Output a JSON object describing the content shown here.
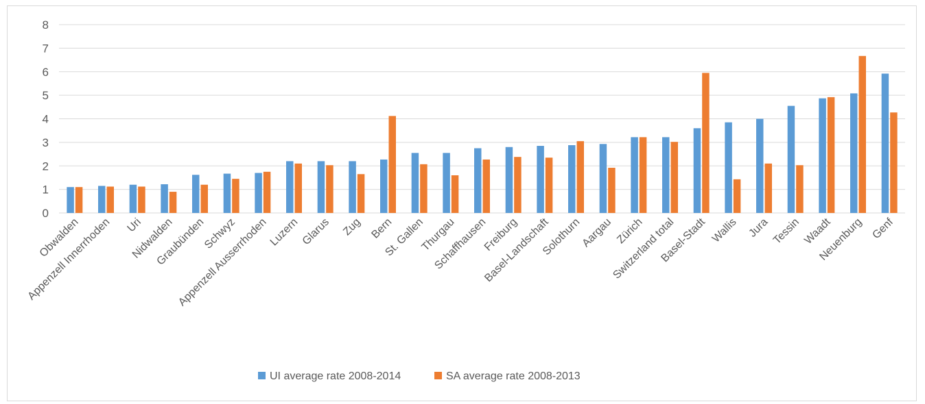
{
  "chart_data": {
    "type": "bar",
    "categories": [
      "Obwalden",
      "Appenzell Innerrhoden",
      "Uri",
      "Nidwalden",
      "Graubünden",
      "Schwyz",
      "Appenzell Ausserrhoden",
      "Luzern",
      "Glarus",
      "Zug",
      "Bern",
      "St. Gallen",
      "Thurgau",
      "Schaffhausen",
      "Freiburg",
      "Basel-Landschaft",
      "Solothurn",
      "Aargau",
      "Zürich",
      "Switzerland total",
      "Basel-Stadt",
      "Wallis",
      "Jura",
      "Tessin",
      "Waadt",
      "Neuenburg",
      "Genf"
    ],
    "series": [
      {
        "name": "UI average rate 2008-2014",
        "color": "#5b9bd5",
        "values": [
          1.1,
          1.15,
          1.2,
          1.22,
          1.62,
          1.67,
          1.7,
          2.2,
          2.2,
          2.2,
          2.27,
          2.55,
          2.55,
          2.75,
          2.8,
          2.85,
          2.88,
          2.93,
          3.22,
          3.22,
          3.6,
          3.85,
          4.0,
          4.55,
          4.87,
          5.08,
          5.92
        ]
      },
      {
        "name": "SA average rate 2008-2013",
        "color": "#ed7d31",
        "values": [
          1.1,
          1.12,
          1.12,
          0.9,
          1.2,
          1.45,
          1.75,
          2.1,
          2.03,
          1.65,
          4.12,
          2.07,
          1.6,
          2.27,
          2.38,
          2.35,
          3.05,
          1.92,
          3.22,
          3.02,
          5.95,
          1.43,
          2.1,
          2.03,
          4.92,
          6.67,
          4.27
        ]
      }
    ],
    "ylim": [
      0,
      8
    ],
    "yticks": [
      0,
      1,
      2,
      3,
      4,
      5,
      6,
      7,
      8
    ],
    "grid": true,
    "legend_position": "bottom",
    "title": "",
    "xlabel": "",
    "ylabel": ""
  }
}
